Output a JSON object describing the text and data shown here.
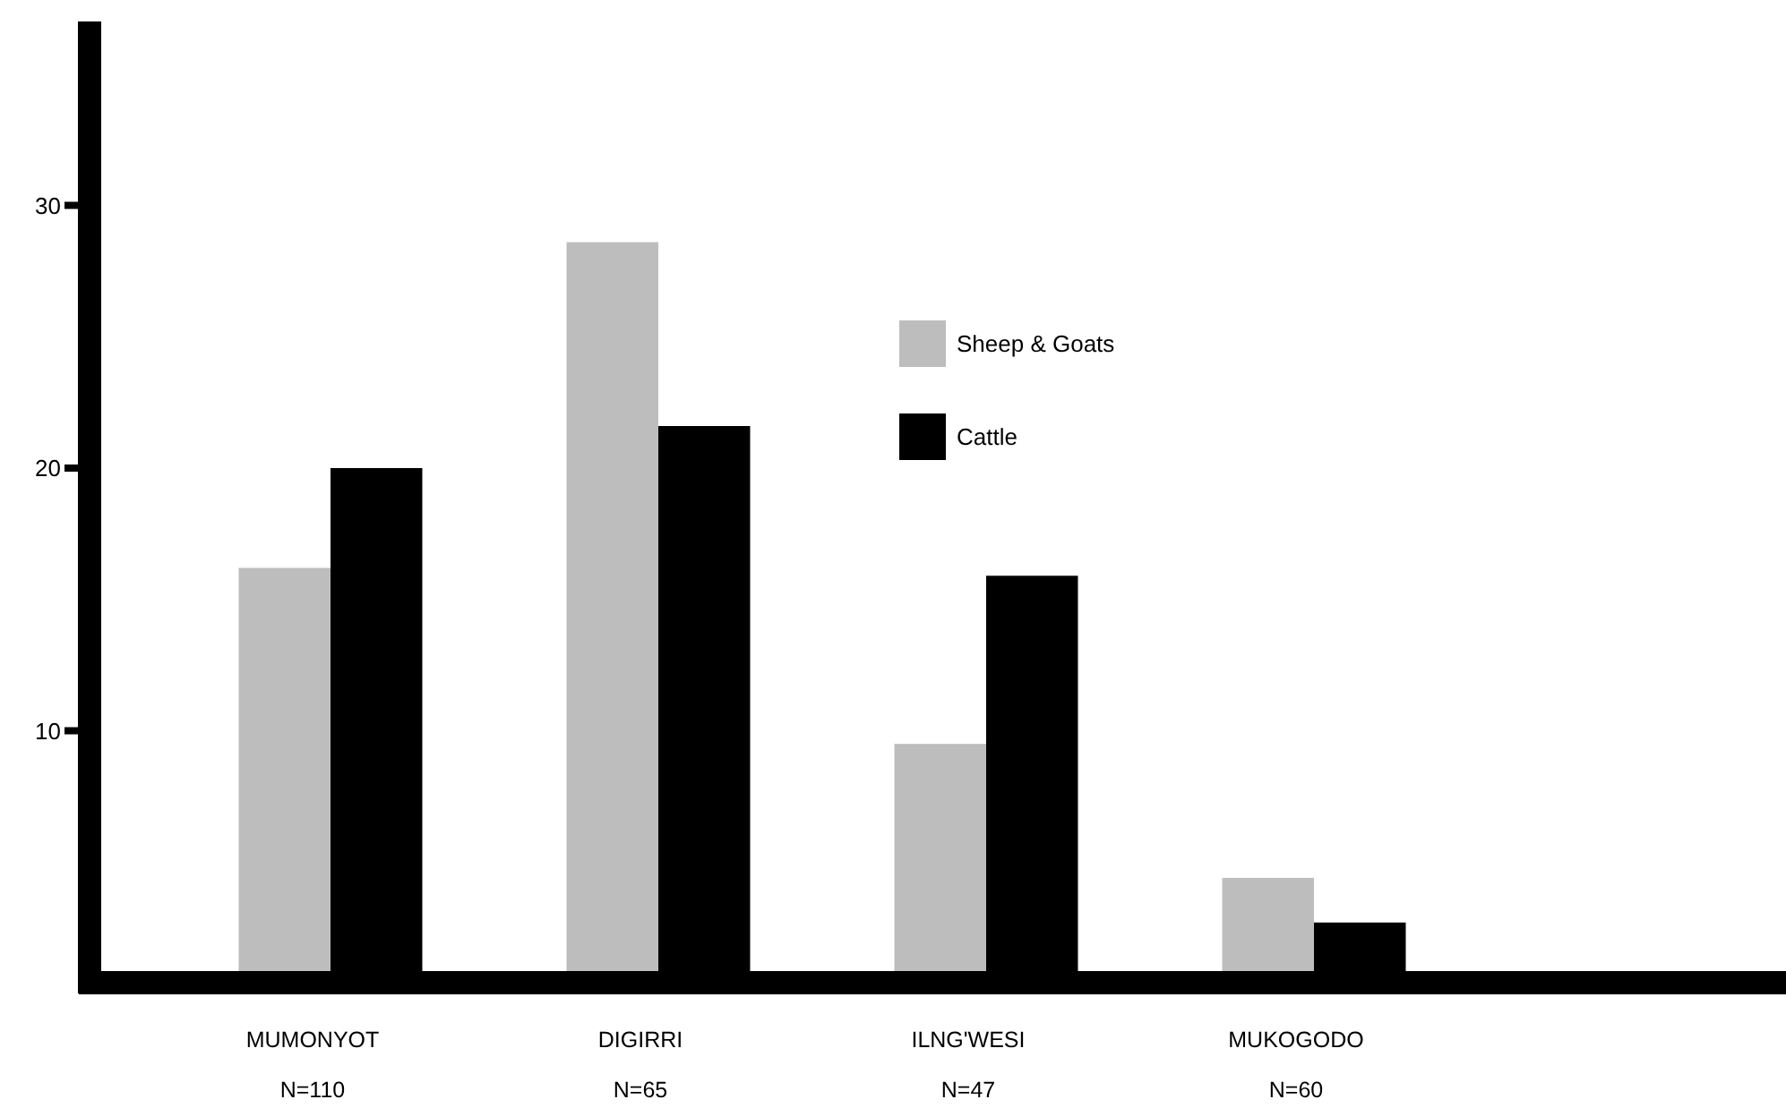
{
  "chart_data": {
    "type": "bar",
    "categories": [
      "MUMONYOT\nN=110",
      "DIGIRRI\nN=65",
      "ILNG'WESI\nN=47",
      "MUKOGODO\nN=60"
    ],
    "series": [
      {
        "name": "Sheep & Goats",
        "color": "#bdbdbd",
        "values": [
          16.2,
          28.6,
          9.5,
          4.4
        ]
      },
      {
        "name": "Cattle",
        "color": "#000000",
        "values": [
          20.0,
          21.6,
          15.9,
          2.7
        ]
      }
    ],
    "ylim": [
      0,
      37
    ],
    "yticks": [
      10,
      20,
      30
    ],
    "grid": false,
    "legend": "top"
  }
}
